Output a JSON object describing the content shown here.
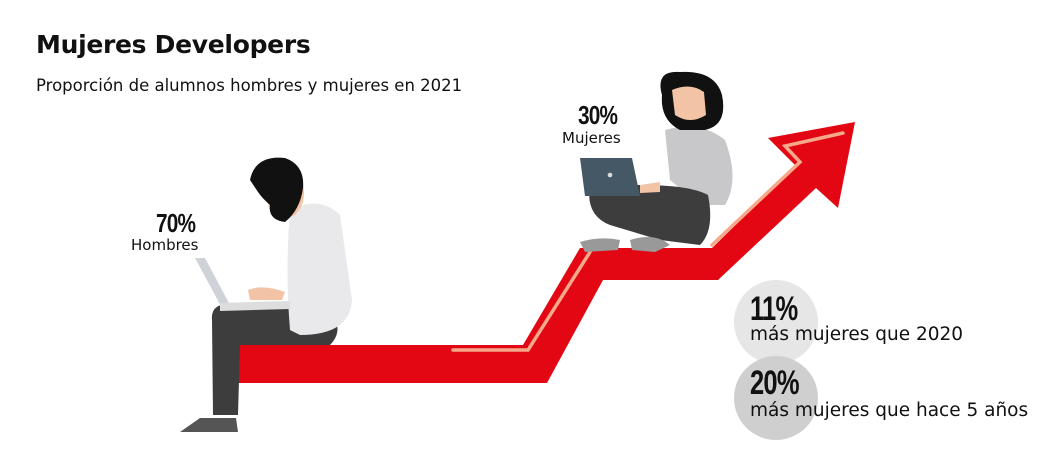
{
  "header": {
    "title": "Mujeres Developers",
    "subtitle": "Proporción de alumnos hombres y mujeres en 2021"
  },
  "men": {
    "value": "70%",
    "label": "Hombres"
  },
  "women": {
    "value": "30%",
    "label": "Mujeres"
  },
  "stats": [
    {
      "value": "11%",
      "text": "más mujeres que 2020"
    },
    {
      "value": "20%",
      "text": "más mujeres que hace 5 años"
    }
  ],
  "colors": {
    "arrow": "#e30613",
    "arrow_highlight": "#f6a98a",
    "circle_1": "#e6e6e6",
    "circle_2": "#cfcfcf"
  }
}
